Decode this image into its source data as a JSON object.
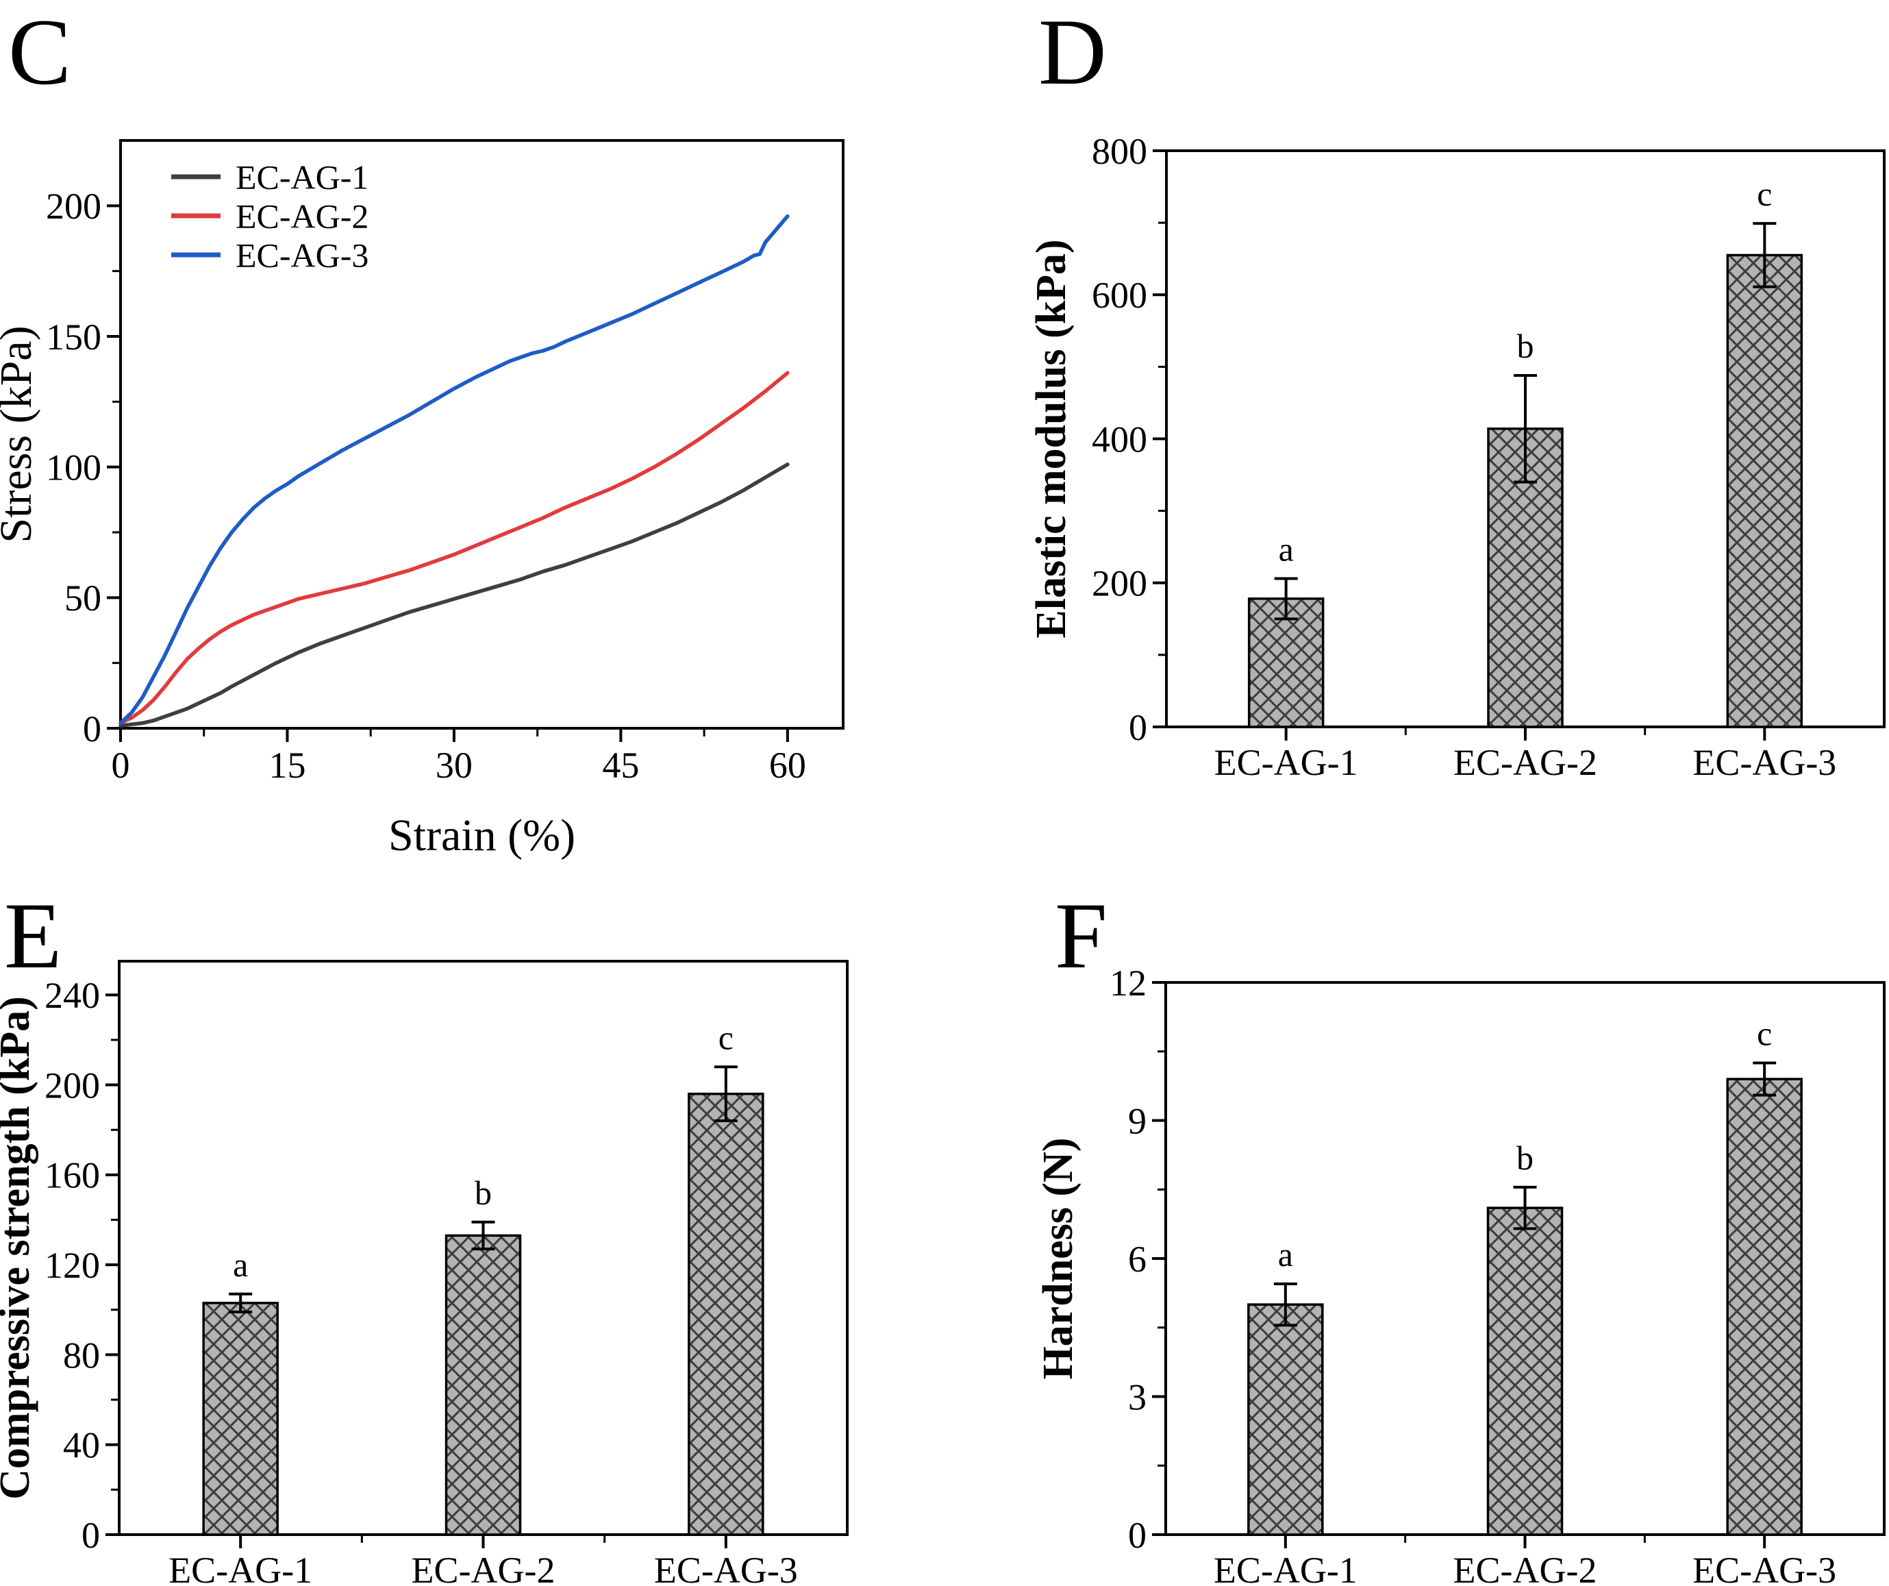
{
  "figure": {
    "background": "#ffffff",
    "axis_color": "#000000",
    "groups": [
      "EC-AG-1",
      "EC-AG-2",
      "EC-AG-3"
    ]
  },
  "chart_data": [
    {
      "panel": "C",
      "type": "line",
      "xlabel": "Strain (%)",
      "ylabel": "Stress (kPa)",
      "xlim": [
        0,
        65
      ],
      "ylim": [
        0,
        225
      ],
      "xticks": [
        0,
        15,
        30,
        45,
        60
      ],
      "yticks": [
        0,
        50,
        100,
        150,
        200
      ],
      "x_minor_step": 7.5,
      "y_minor_step": 25,
      "grid": false,
      "legend_position": "top-left",
      "series": [
        {
          "name": "EC-AG-1",
          "color": "#3f3f3f",
          "points": [
            [
              0,
              1
            ],
            [
              2,
              2
            ],
            [
              3,
              3
            ],
            [
              4,
              4.5
            ],
            [
              5,
              6
            ],
            [
              6,
              7.5
            ],
            [
              7,
              9.5
            ],
            [
              8,
              11.5
            ],
            [
              9,
              13.5
            ],
            [
              10,
              16
            ],
            [
              12,
              20.5
            ],
            [
              14,
              25
            ],
            [
              16,
              29
            ],
            [
              18,
              32.5
            ],
            [
              20,
              35.5
            ],
            [
              22,
              38.5
            ],
            [
              24,
              41.5
            ],
            [
              26,
              44.5
            ],
            [
              28,
              47
            ],
            [
              30,
              49.5
            ],
            [
              32,
              52
            ],
            [
              34,
              54.5
            ],
            [
              36,
              57
            ],
            [
              38,
              60
            ],
            [
              40,
              62.5
            ],
            [
              42,
              65.5
            ],
            [
              44,
              68.5
            ],
            [
              46,
              71.5
            ],
            [
              48,
              75
            ],
            [
              50,
              78.5
            ],
            [
              52,
              82.5
            ],
            [
              54,
              86.5
            ],
            [
              56,
              91
            ],
            [
              58,
              96
            ],
            [
              59,
              98.5
            ],
            [
              60,
              101
            ]
          ]
        },
        {
          "name": "EC-AG-2",
          "color": "#e23b3c",
          "points": [
            [
              0,
              2
            ],
            [
              1,
              4
            ],
            [
              2,
              7
            ],
            [
              3,
              11
            ],
            [
              4,
              16
            ],
            [
              5,
              21.5
            ],
            [
              6,
              26.5
            ],
            [
              7,
              30.5
            ],
            [
              8,
              34
            ],
            [
              9,
              37
            ],
            [
              10,
              39.5
            ],
            [
              11,
              41.5
            ],
            [
              12,
              43.5
            ],
            [
              13,
              45
            ],
            [
              14,
              46.5
            ],
            [
              15,
              48
            ],
            [
              16,
              49.5
            ],
            [
              18,
              51.5
            ],
            [
              20,
              53.5
            ],
            [
              22,
              55.5
            ],
            [
              24,
              58
            ],
            [
              26,
              60.5
            ],
            [
              28,
              63.5
            ],
            [
              30,
              66.5
            ],
            [
              32,
              70
            ],
            [
              34,
              73.5
            ],
            [
              36,
              77
            ],
            [
              38,
              80.5
            ],
            [
              40,
              84.5
            ],
            [
              42,
              88
            ],
            [
              44,
              91.5
            ],
            [
              46,
              95.5
            ],
            [
              48,
              100
            ],
            [
              50,
              105
            ],
            [
              52,
              110.5
            ],
            [
              54,
              116.5
            ],
            [
              56,
              122.5
            ],
            [
              58,
              129
            ],
            [
              59,
              132.5
            ],
            [
              60,
              136
            ]
          ]
        },
        {
          "name": "EC-AG-3",
          "color": "#1e5cc6",
          "points": [
            [
              0,
              2
            ],
            [
              1,
              6
            ],
            [
              2,
              12
            ],
            [
              3,
              20
            ],
            [
              4,
              28
            ],
            [
              5,
              37
            ],
            [
              6,
              46
            ],
            [
              7,
              54
            ],
            [
              8,
              62
            ],
            [
              9,
              69
            ],
            [
              10,
              75
            ],
            [
              11,
              80
            ],
            [
              12,
              84.5
            ],
            [
              13,
              88
            ],
            [
              14,
              91
            ],
            [
              15,
              93.5
            ],
            [
              16,
              96.5
            ],
            [
              17,
              99
            ],
            [
              18,
              101.5
            ],
            [
              20,
              106.5
            ],
            [
              22,
              111
            ],
            [
              24,
              115.5
            ],
            [
              26,
              120
            ],
            [
              28,
              125
            ],
            [
              30,
              130
            ],
            [
              32,
              134.5
            ],
            [
              34,
              138.5
            ],
            [
              35,
              140.5
            ],
            [
              36,
              142
            ],
            [
              37,
              143.5
            ],
            [
              38,
              144.5
            ],
            [
              39,
              146
            ],
            [
              40,
              148
            ],
            [
              42,
              151.5
            ],
            [
              44,
              155
            ],
            [
              46,
              158.5
            ],
            [
              48,
              162.5
            ],
            [
              50,
              166.5
            ],
            [
              52,
              170.5
            ],
            [
              54,
              174.5
            ],
            [
              55,
              176.5
            ],
            [
              56,
              178.5
            ],
            [
              57,
              181
            ],
            [
              57.5,
              181.5
            ],
            [
              58,
              186
            ],
            [
              59,
              191
            ],
            [
              60,
              196
            ]
          ]
        }
      ]
    },
    {
      "panel": "D",
      "type": "bar",
      "ylabel": "Elastic modulus (kPa)",
      "categories": [
        "EC-AG-1",
        "EC-AG-2",
        "EC-AG-3"
      ],
      "values": [
        178,
        414,
        655
      ],
      "errors": [
        28,
        74,
        44
      ],
      "sig_letters": [
        "a",
        "b",
        "c"
      ],
      "ylim": [
        0,
        800
      ],
      "yticks": [
        0,
        200,
        400,
        600,
        800
      ],
      "y_minor_step": 100,
      "grid": false,
      "bar_fill": "#b3b3b3",
      "bar_hatch_color": "#3d3d3d",
      "hatch": "diagonal-cross"
    },
    {
      "panel": "E",
      "type": "bar",
      "ylabel": "Compressive strength (kPa)",
      "categories": [
        "EC-AG-1",
        "EC-AG-2",
        "EC-AG-3"
      ],
      "values": [
        103,
        133,
        196
      ],
      "errors": [
        4,
        6,
        12
      ],
      "sig_letters": [
        "a",
        "b",
        "c"
      ],
      "ylim": [
        0,
        255
      ],
      "yticks": [
        0,
        40,
        80,
        120,
        160,
        200,
        240
      ],
      "y_minor_step": 20,
      "grid": false,
      "bar_fill": "#b3b3b3",
      "bar_hatch_color": "#3d3d3d",
      "hatch": "diagonal-cross"
    },
    {
      "panel": "F",
      "type": "bar",
      "ylabel": "Hardness (N)",
      "categories": [
        "EC-AG-1",
        "EC-AG-2",
        "EC-AG-3"
      ],
      "values": [
        5.0,
        7.1,
        9.9
      ],
      "errors": [
        0.45,
        0.45,
        0.35
      ],
      "sig_letters": [
        "a",
        "b",
        "c"
      ],
      "ylim": [
        0,
        12
      ],
      "yticks": [
        0,
        3,
        6,
        9,
        12
      ],
      "y_minor_step": 1.5,
      "grid": false,
      "bar_fill": "#b3b3b3",
      "bar_hatch_color": "#3d3d3d",
      "hatch": "diagonal-cross"
    }
  ]
}
